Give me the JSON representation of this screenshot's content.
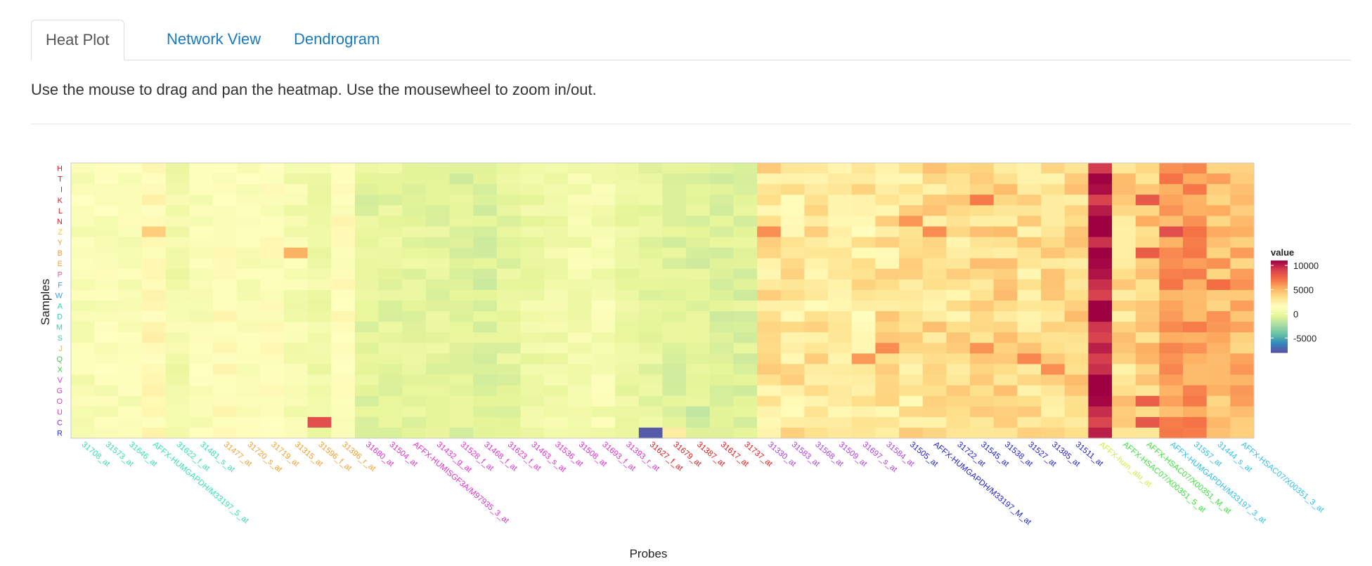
{
  "tabs": [
    {
      "label": "Heat Plot",
      "active": true
    },
    {
      "label": "Network View",
      "active": false
    },
    {
      "label": "Dendrogram",
      "active": false
    }
  ],
  "instruction": "Use the mouse to drag and pan the heatmap. Use the mousewheel to zoom in/out.",
  "chart_data": {
    "type": "heatmap",
    "xlabel": "Probes",
    "ylabel": "Samples",
    "legend": {
      "title": "value",
      "ticks": [
        10000,
        5000,
        0,
        -5000
      ],
      "tick_labels": [
        "10000",
        "5000",
        "0",
        "-5000"
      ],
      "range": [
        -8000,
        11000
      ],
      "colors": [
        "#5e4fa2",
        "#3288bd",
        "#66c2a5",
        "#abdda4",
        "#e6f598",
        "#ffffbf",
        "#fee08b",
        "#fdae61",
        "#f46d43",
        "#d53e4f",
        "#9e0142"
      ],
      "placement": "right"
    },
    "samples": [
      "H",
      "T",
      "I",
      "K",
      "L",
      "N",
      "Z",
      "Y",
      "B",
      "E",
      "P",
      "F",
      "W",
      "A",
      "D",
      "M",
      "S",
      "J",
      "Q",
      "X",
      "V",
      "G",
      "O",
      "U",
      "C",
      "R"
    ],
    "sample_colors": [
      "#e41a1c",
      "#e41a1c",
      "#e41a1c",
      "#e41a1c",
      "#e41a1c",
      "#e41a1c",
      "#f2c72f",
      "#f2a330",
      "#f29a30",
      "#f2a330",
      "#e85aa8",
      "#3fa0e8",
      "#3fa0e8",
      "#33d0b0",
      "#33d0b0",
      "#33d0b0",
      "#33d0b0",
      "#f0b830",
      "#3bd04a",
      "#3bd04a",
      "#d040e0",
      "#e040b8",
      "#e040b8",
      "#e040b8",
      "#8030e0",
      "#3030e0"
    ],
    "probes": [
      "31708_at",
      "31573_at",
      "31646_at",
      "AFFX-HUMGAPDH/M33197_5_at",
      "31622_f_at",
      "31481_s_at",
      "31477_at",
      "31720_s_at",
      "31719_at",
      "31315_at",
      "31596_f_at",
      "31396_r_at",
      "31680_at",
      "31504_at",
      "AFFX-HUMISGF3A/M97935_3_at",
      "31432_g_at",
      "31528_f_at",
      "31468_f_at",
      "31623_f_at",
      "31463_s_at",
      "31536_at",
      "31508_at",
      "31693_f_at",
      "31393_r_at",
      "31627_f_at",
      "31679_at",
      "31387_at",
      "31617_at",
      "31737_at",
      "31330_at",
      "31583_at",
      "31568_at",
      "31509_at",
      "31697_s_at",
      "31584_at",
      "31505_at",
      "AFFX-HUMGAPDH/M33197_M_at",
      "31722_at",
      "31545_at",
      "31538_at",
      "31527_at",
      "31385_at",
      "31511_at",
      "AFFX-hum_alu_at",
      "AFFX-HSAC07/X00351_5_at",
      "AFFX-HSAC07/X00351_M_at",
      "AFFX-HUMGAPDH/M33197_3_at",
      "31557_at",
      "31444_s_at",
      "AFFX-HSAC07/X00351_3_at"
    ],
    "probe_colors": [
      "#33e0b0",
      "#33e0b0",
      "#33e0b0",
      "#33e0b0",
      "#33e0b0",
      "#33e0b0",
      "#f0a030",
      "#f0a030",
      "#f0a030",
      "#f0a030",
      "#f0a030",
      "#f0a030",
      "#e030d0",
      "#e030d0",
      "#e030d0",
      "#e030d0",
      "#e030d0",
      "#e030d0",
      "#e030d0",
      "#e030d0",
      "#e030d0",
      "#e030d0",
      "#e030d0",
      "#e030d0",
      "#e41a1c",
      "#e41a1c",
      "#e41a1c",
      "#e41a1c",
      "#e41a1c",
      "#b040e0",
      "#b040e0",
      "#b040e0",
      "#b040e0",
      "#b040e0",
      "#b040e0",
      "#2020d0",
      "#2020d0",
      "#2020d0",
      "#2020d0",
      "#2020d0",
      "#2020d0",
      "#2020d0",
      "#2020d0",
      "#c8f040",
      "#40e040",
      "#40e040",
      "#30c0e8",
      "#30c0e8",
      "#30c0e8",
      "#30c0e8"
    ],
    "probe_base": [
      900,
      1100,
      1200,
      1800,
      500,
      1100,
      1600,
      1100,
      1400,
      700,
      400,
      1500,
      -400,
      -300,
      -200,
      -300,
      -600,
      -700,
      -300,
      200,
      400,
      600,
      700,
      -100,
      -200,
      -600,
      -600,
      -600,
      -600,
      3200,
      3000,
      2900,
      2500,
      2800,
      3100,
      3000,
      3400,
      3300,
      3500,
      3700,
      3300,
      3300,
      3600,
      10000,
      3600,
      4200,
      5800,
      6000,
      5000,
      4900
    ],
    "deviations": [
      {
        "probe": 10,
        "sample": 24,
        "value": 8400
      },
      {
        "probe": 24,
        "sample": 25,
        "value": -7600
      },
      {
        "probe": 25,
        "sample": 25,
        "value": 2600
      },
      {
        "probe": 26,
        "sample": 23,
        "value": -1600
      },
      {
        "probe": 9,
        "sample": 8,
        "value": 5200
      },
      {
        "probe": 3,
        "sample": 6,
        "value": 4100
      },
      {
        "probe": 35,
        "sample": 5,
        "value": 6000
      },
      {
        "probe": 36,
        "sample": 6,
        "value": 6300
      },
      {
        "probe": 29,
        "sample": 6,
        "value": 6200
      },
      {
        "probe": 38,
        "sample": 17,
        "value": 6100
      },
      {
        "probe": 38,
        "sample": 3,
        "value": 6800
      },
      {
        "probe": 46,
        "sample": 6,
        "value": 8400
      },
      {
        "probe": 45,
        "sample": 3,
        "value": 8000
      },
      {
        "probe": 45,
        "sample": 8,
        "value": 7800
      },
      {
        "probe": 45,
        "sample": 22,
        "value": 7800
      },
      {
        "probe": 45,
        "sample": 24,
        "value": 8100
      },
      {
        "probe": 43,
        "sample": 21,
        "value": 11200
      },
      {
        "probe": 43,
        "sample": 13,
        "value": 11000
      },
      {
        "probe": 43,
        "sample": 2,
        "value": 10600
      },
      {
        "probe": 48,
        "sample": 11,
        "value": 7200
      },
      {
        "probe": 40,
        "sample": 18,
        "value": 6400
      },
      {
        "probe": 41,
        "sample": 19,
        "value": 6200
      },
      {
        "probe": 34,
        "sample": 17,
        "value": 6300
      },
      {
        "probe": 33,
        "sample": 18,
        "value": 5900
      }
    ]
  }
}
